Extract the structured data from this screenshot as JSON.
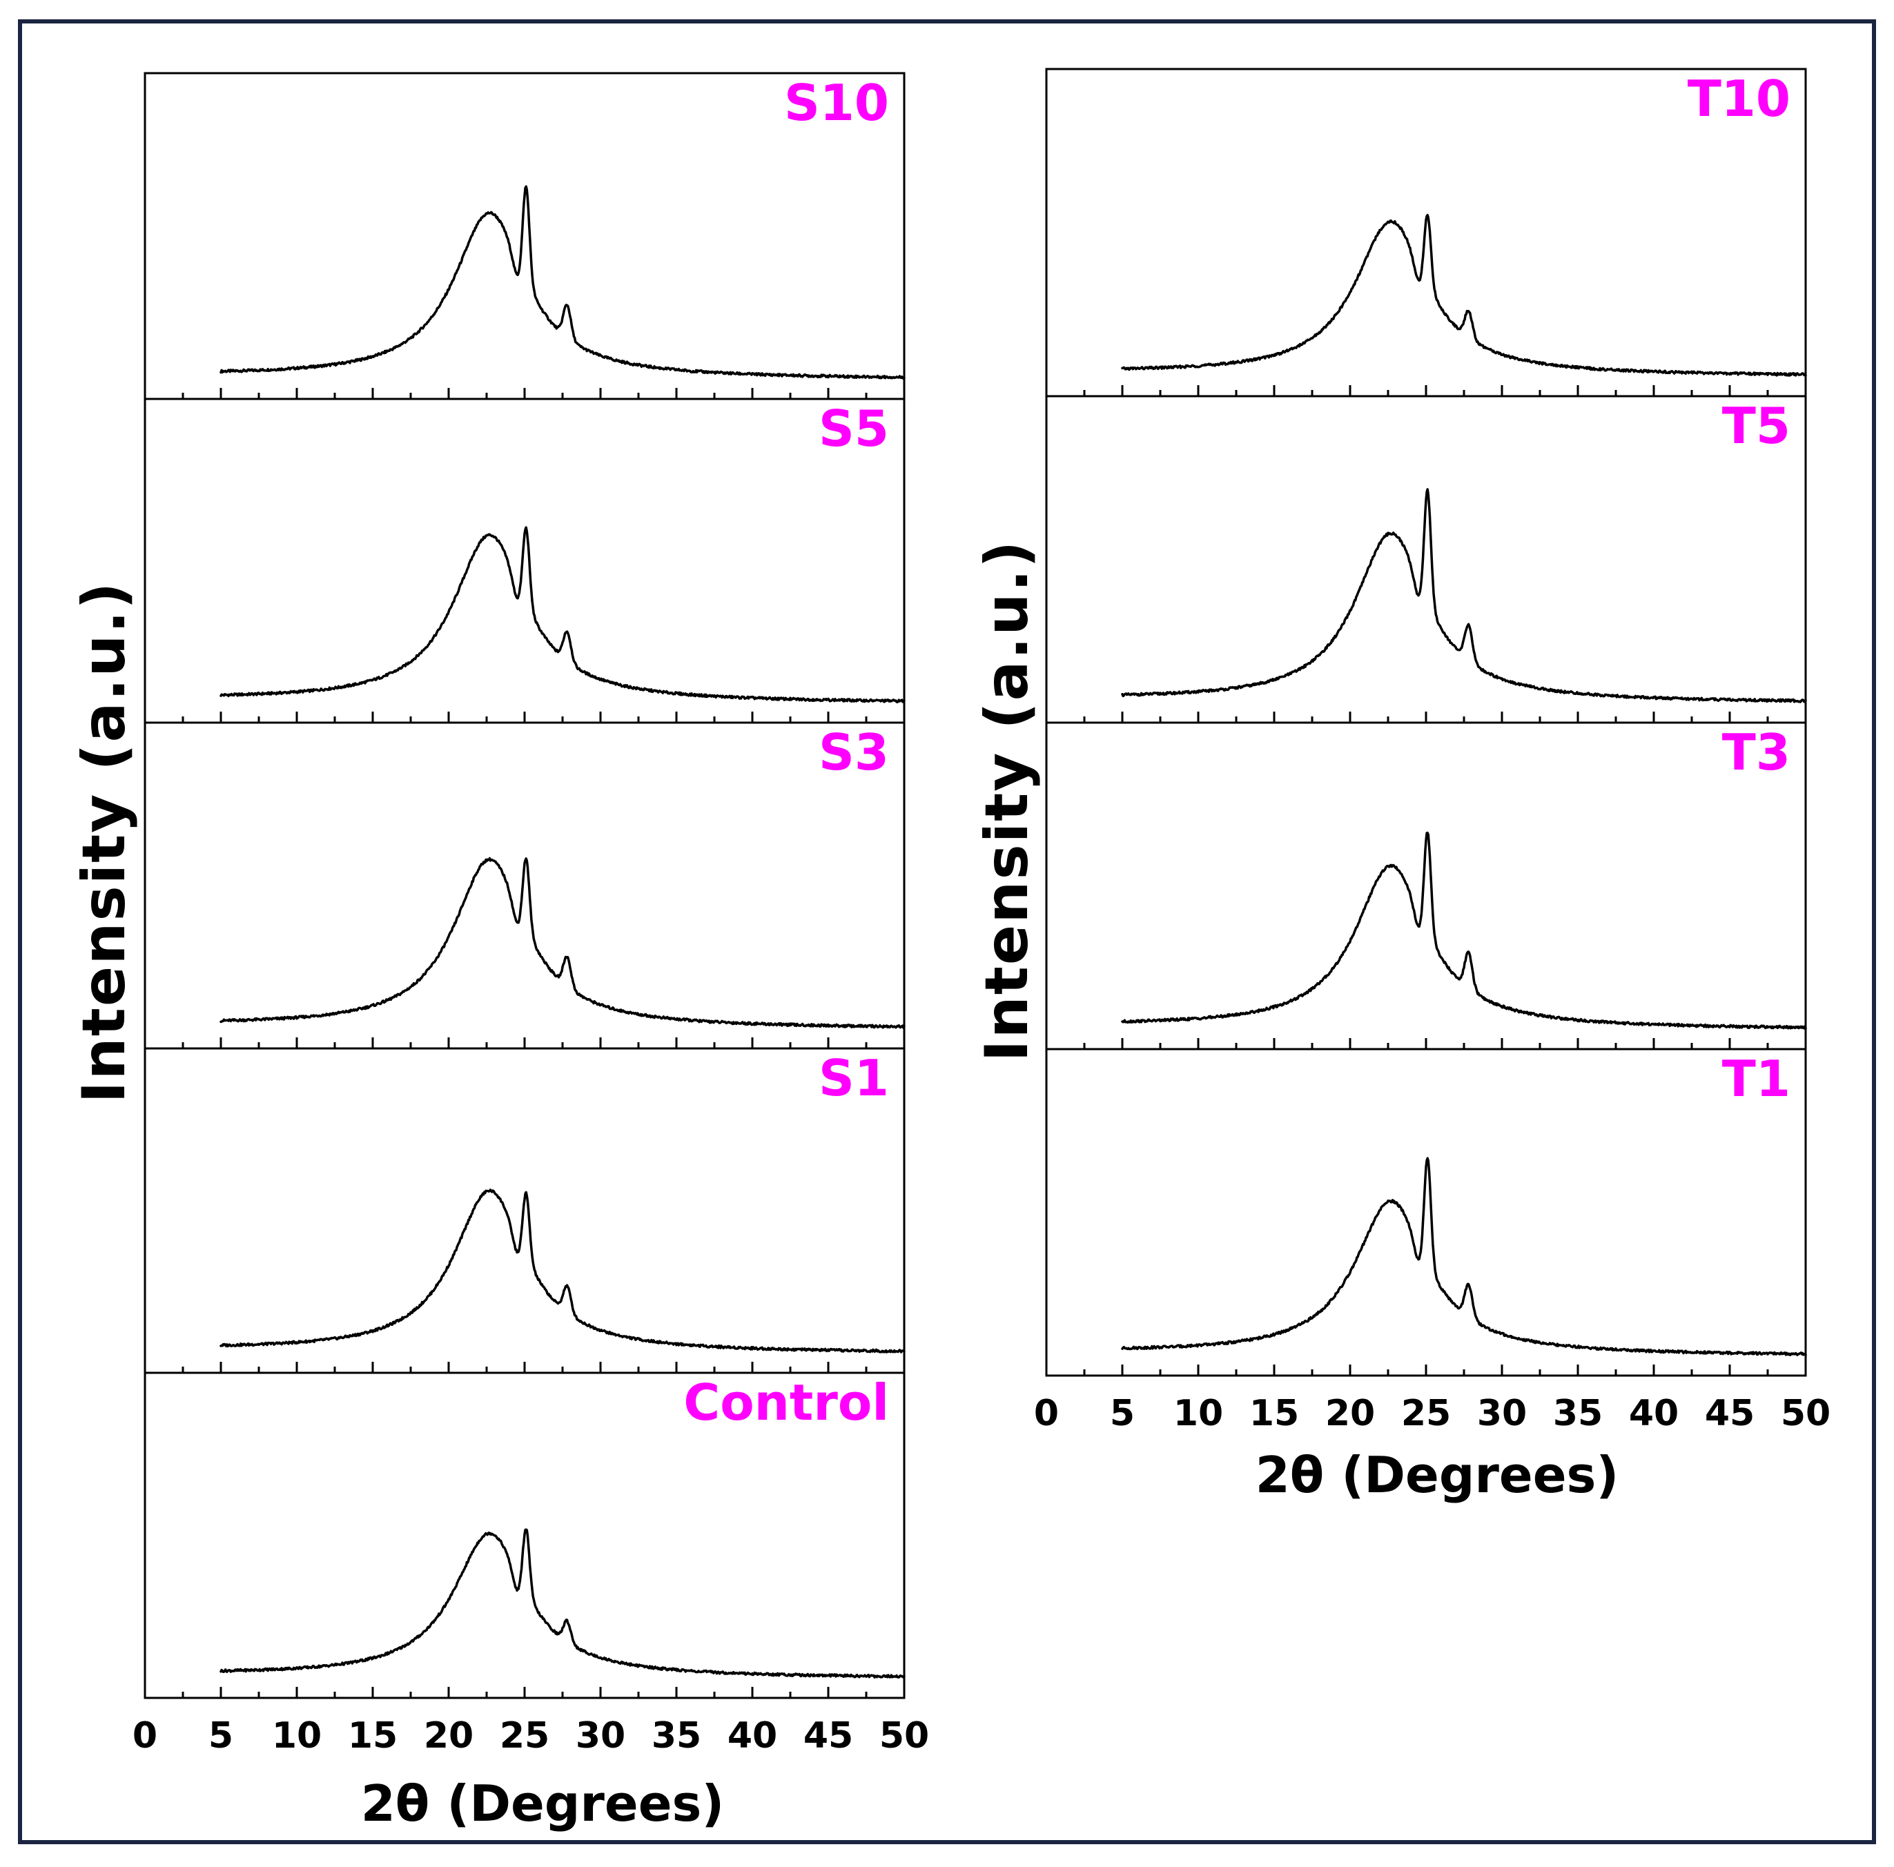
{
  "chart_data": [
    {
      "type": "line",
      "name": "left-stack",
      "ylabel": "Intensity (a.u.)",
      "xlabel": "2θ (Degrees)",
      "xlim": [
        0,
        50
      ],
      "x_ticks": [
        0,
        5,
        10,
        15,
        20,
        25,
        30,
        35,
        40,
        45,
        50
      ],
      "label_color": "#ff00ff",
      "panels": [
        {
          "label": "S10",
          "baseline": 0.04,
          "broad_peak": {
            "center": 22.7,
            "height": 0.55,
            "width": 2.9
          },
          "peak_25": 0.32,
          "peak_28": 0.11
        },
        {
          "label": "S5",
          "baseline": 0.04,
          "broad_peak": {
            "center": 22.7,
            "height": 0.56,
            "width": 2.9
          },
          "peak_25": 0.26,
          "peak_28": 0.1
        },
        {
          "label": "S3",
          "baseline": 0.04,
          "broad_peak": {
            "center": 22.7,
            "height": 0.56,
            "width": 2.9
          },
          "peak_25": 0.24,
          "peak_28": 0.1
        },
        {
          "label": "S1",
          "baseline": 0.04,
          "broad_peak": {
            "center": 22.7,
            "height": 0.54,
            "width": 2.9
          },
          "peak_25": 0.22,
          "peak_28": 0.09
        },
        {
          "label": "Control",
          "baseline": 0.04,
          "broad_peak": {
            "center": 22.7,
            "height": 0.48,
            "width": 2.9
          },
          "peak_25": 0.22,
          "peak_28": 0.07
        }
      ]
    },
    {
      "type": "line",
      "name": "right-stack",
      "ylabel": "Intensity (a.u.)",
      "xlabel": "2θ (Degrees)",
      "xlim": [
        0,
        50
      ],
      "x_ticks": [
        0,
        5,
        10,
        15,
        20,
        25,
        30,
        35,
        40,
        45,
        50
      ],
      "label_color": "#ff00ff",
      "panels": [
        {
          "label": "T10",
          "baseline": 0.04,
          "broad_peak": {
            "center": 22.7,
            "height": 0.51,
            "width": 2.9
          },
          "peak_25": 0.24,
          "peak_28": 0.09
        },
        {
          "label": "T5",
          "baseline": 0.04,
          "broad_peak": {
            "center": 22.7,
            "height": 0.56,
            "width": 2.9
          },
          "peak_25": 0.38,
          "peak_28": 0.12
        },
        {
          "label": "T3",
          "baseline": 0.04,
          "broad_peak": {
            "center": 22.7,
            "height": 0.54,
            "width": 2.9
          },
          "peak_25": 0.34,
          "peak_28": 0.12
        },
        {
          "label": "T1",
          "baseline": 0.04,
          "broad_peak": {
            "center": 22.7,
            "height": 0.51,
            "width": 2.9
          },
          "peak_25": 0.36,
          "peak_28": 0.11
        }
      ]
    }
  ]
}
